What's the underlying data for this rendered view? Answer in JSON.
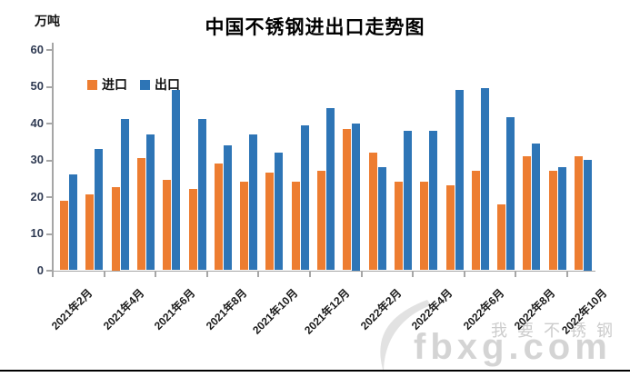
{
  "title": "中国不锈钢进出口走势图",
  "y_axis_unit": "万吨",
  "legend": [
    {
      "label": "进口",
      "color": "#ED7D31"
    },
    {
      "label": "出口",
      "color": "#2E75B6"
    }
  ],
  "watermark": {
    "cn_text": "我要不锈钢",
    "site_text": "fbxg.com"
  },
  "colors": {
    "import_orange": "#ED7D31",
    "export_blue": "#2E75B6",
    "axis_gray": "#A6A6A6"
  },
  "chart_data": {
    "type": "bar",
    "title": "中国不锈钢进出口走势图",
    "xlabel": "",
    "ylabel": "万吨",
    "ylim": [
      0,
      60
    ],
    "ytick_interval": 10,
    "y_ticks": [
      0,
      10,
      20,
      30,
      40,
      50,
      60
    ],
    "grid": false,
    "legend_position": "top-left-inside",
    "categories": [
      "2021年2月",
      "2021年3月",
      "2021年4月",
      "2021年5月",
      "2021年6月",
      "2021年7月",
      "2021年8月",
      "2021年9月",
      "2021年10月",
      "2021年11月",
      "2021年12月",
      "2022年1月",
      "2022年2月",
      "2022年3月",
      "2022年4月",
      "2022年5月",
      "2022年6月",
      "2022年7月",
      "2022年8月",
      "2022年9月",
      "2022年10月"
    ],
    "x_tick_labels": [
      "2021年2月",
      "2021年4月",
      "2021年6月",
      "2021年8月",
      "2021年10月",
      "2021年12月",
      "2022年2月",
      "2022年4月",
      "2022年6月",
      "2022年8月",
      "2022年10月"
    ],
    "series": [
      {
        "name": "进口",
        "color": "#ED7D31",
        "values": [
          19,
          20.5,
          22.5,
          30.5,
          24.5,
          22,
          29,
          24,
          26.5,
          24,
          27,
          38.5,
          32,
          24,
          24,
          23,
          27,
          18,
          31,
          27,
          31
        ]
      },
      {
        "name": "出口",
        "color": "#2E75B6",
        "values": [
          26,
          33,
          41,
          37,
          49,
          41,
          34,
          37,
          32,
          39.5,
          44,
          40,
          28,
          38,
          38,
          49,
          49.5,
          41.5,
          34.5,
          28,
          30
        ]
      }
    ]
  }
}
